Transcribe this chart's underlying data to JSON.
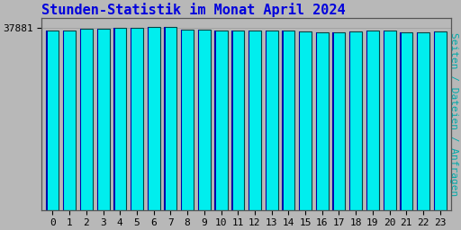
{
  "title": "Stunden-Statistik im Monat April 2024",
  "title_color": "#0000dd",
  "ylabel": "Seiten / Dateien / Anfragen",
  "ylabel_color": "#00aaaa",
  "background_color": "#b8b8b8",
  "plot_bg_color": "#b8b8b8",
  "bar_face_color": "#00eeee",
  "bar_left_edge_color": "#0000aa",
  "bar_right_edge_color": "#006666",
  "bar_outline_color": "#004444",
  "bar_width": 0.75,
  "ytick_label": "37881",
  "ytick_value": 37881,
  "ytick_color": "#000000",
  "xtick_color": "#000000",
  "hours": [
    0,
    1,
    2,
    3,
    4,
    5,
    6,
    7,
    8,
    9,
    10,
    11,
    12,
    13,
    14,
    15,
    16,
    17,
    18,
    19,
    20,
    21,
    22,
    23
  ],
  "values": [
    37400,
    37300,
    37700,
    37800,
    37900,
    38000,
    38100,
    38200,
    37600,
    37500,
    37450,
    37430,
    37420,
    37410,
    37390,
    37100,
    37050,
    37000,
    37200,
    37300,
    37280,
    37080,
    37020,
    37150
  ],
  "ymin": 0,
  "ymax": 40000,
  "font_family": "monospace",
  "title_fontsize": 11,
  "tick_fontsize": 8,
  "ylabel_fontsize": 8
}
